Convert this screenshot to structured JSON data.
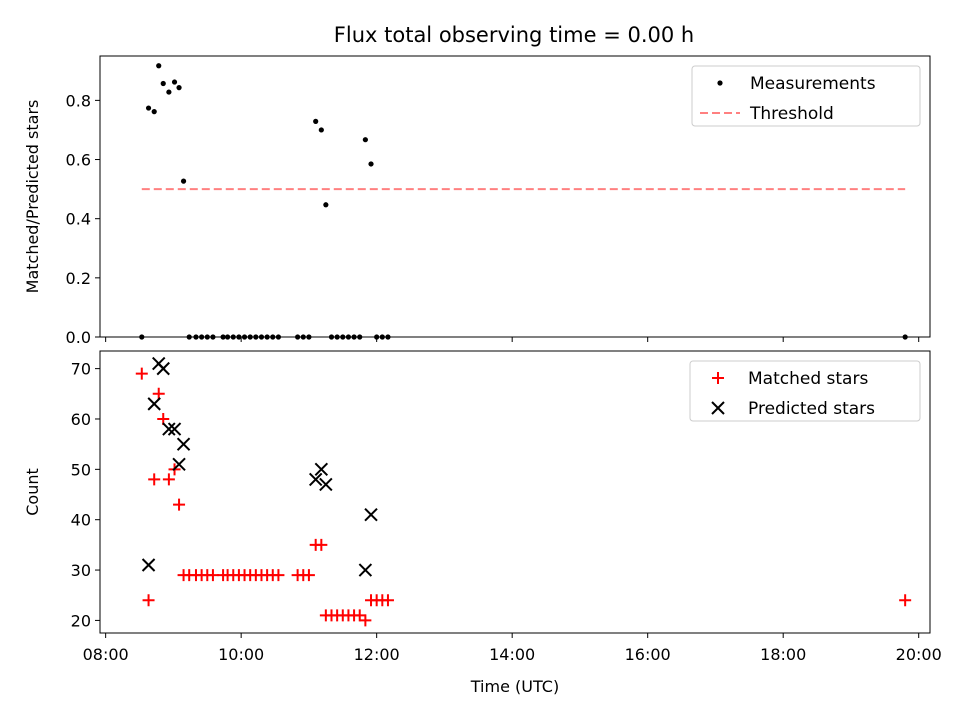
{
  "title": "Flux total observing time = 0.00 h",
  "chart_data": [
    {
      "type": "scatter",
      "ylabel": "Matched/Predicted stars",
      "xlim": [
        "07:55",
        "20:10"
      ],
      "ylim": [
        0,
        0.95
      ],
      "yticks": [
        "0.0",
        "0.2",
        "0.4",
        "0.6",
        "0.8"
      ],
      "legend": "top-right",
      "series": [
        {
          "name": "Measurements",
          "marker": "dot",
          "color": "#000000",
          "points": [
            [
              "08:32",
              0.0
            ],
            [
              "08:38",
              0.774
            ],
            [
              "08:43",
              0.762
            ],
            [
              "08:47",
              0.917
            ],
            [
              "08:51",
              0.857
            ],
            [
              "08:56",
              0.828
            ],
            [
              "09:01",
              0.862
            ],
            [
              "09:05",
              0.843
            ],
            [
              "09:09",
              0.527
            ],
            [
              "09:14",
              0.0
            ],
            [
              "09:20",
              0.0
            ],
            [
              "09:25",
              0.0
            ],
            [
              "09:30",
              0.0
            ],
            [
              "09:35",
              0.0
            ],
            [
              "09:44",
              0.0
            ],
            [
              "09:48",
              0.0
            ],
            [
              "09:53",
              0.0
            ],
            [
              "09:58",
              0.0
            ],
            [
              "10:03",
              0.0
            ],
            [
              "10:08",
              0.0
            ],
            [
              "10:13",
              0.0
            ],
            [
              "10:18",
              0.0
            ],
            [
              "10:23",
              0.0
            ],
            [
              "10:28",
              0.0
            ],
            [
              "10:33",
              0.0
            ],
            [
              "10:50",
              0.0
            ],
            [
              "10:55",
              0.0
            ],
            [
              "11:00",
              0.0
            ],
            [
              "11:06",
              0.729
            ],
            [
              "11:11",
              0.7
            ],
            [
              "11:15",
              0.447
            ],
            [
              "11:20",
              0.0
            ],
            [
              "11:25",
              0.0
            ],
            [
              "11:30",
              0.0
            ],
            [
              "11:35",
              0.0
            ],
            [
              "11:40",
              0.0
            ],
            [
              "11:45",
              0.0
            ],
            [
              "11:50",
              0.667
            ],
            [
              "11:55",
              0.585
            ],
            [
              "12:00",
              0.0
            ],
            [
              "12:05",
              0.0
            ],
            [
              "12:10",
              0.0
            ],
            [
              "19:48",
              0.0
            ]
          ]
        },
        {
          "name": "Threshold",
          "marker": "dashed-line",
          "color": "#ff8080",
          "points": [
            [
              "08:32",
              0.5
            ],
            [
              "19:48",
              0.5
            ]
          ]
        }
      ]
    },
    {
      "type": "scatter",
      "xlabel": "Time (UTC)",
      "ylabel": "Count",
      "xlim": [
        "07:55",
        "20:10"
      ],
      "ylim": [
        17.5,
        73.5
      ],
      "xticks": [
        "08:00",
        "10:00",
        "12:00",
        "14:00",
        "16:00",
        "18:00",
        "20:00"
      ],
      "yticks": [
        "20",
        "30",
        "40",
        "50",
        "60",
        "70"
      ],
      "legend": "top-right",
      "series": [
        {
          "name": "Matched stars",
          "marker": "plus",
          "color": "#ff0000",
          "points": [
            [
              "08:32",
              69
            ],
            [
              "08:38",
              24
            ],
            [
              "08:43",
              48
            ],
            [
              "08:47",
              65
            ],
            [
              "08:51",
              60
            ],
            [
              "08:56",
              48
            ],
            [
              "09:01",
              50
            ],
            [
              "09:05",
              43
            ],
            [
              "09:09",
              29
            ],
            [
              "09:14",
              29
            ],
            [
              "09:20",
              29
            ],
            [
              "09:25",
              29
            ],
            [
              "09:30",
              29
            ],
            [
              "09:35",
              29
            ],
            [
              "09:44",
              29
            ],
            [
              "09:48",
              29
            ],
            [
              "09:53",
              29
            ],
            [
              "09:58",
              29
            ],
            [
              "10:03",
              29
            ],
            [
              "10:08",
              29
            ],
            [
              "10:13",
              29
            ],
            [
              "10:18",
              29
            ],
            [
              "10:23",
              29
            ],
            [
              "10:28",
              29
            ],
            [
              "10:33",
              29
            ],
            [
              "10:50",
              29
            ],
            [
              "10:55",
              29
            ],
            [
              "11:00",
              29
            ],
            [
              "11:06",
              35
            ],
            [
              "11:11",
              35
            ],
            [
              "11:15",
              21
            ],
            [
              "11:20",
              21
            ],
            [
              "11:25",
              21
            ],
            [
              "11:30",
              21
            ],
            [
              "11:35",
              21
            ],
            [
              "11:40",
              21
            ],
            [
              "11:45",
              21
            ],
            [
              "11:50",
              20
            ],
            [
              "11:55",
              24
            ],
            [
              "12:00",
              24
            ],
            [
              "12:05",
              24
            ],
            [
              "12:10",
              24
            ],
            [
              "19:48",
              24
            ]
          ]
        },
        {
          "name": "Predicted stars",
          "marker": "x",
          "color": "#000000",
          "points": [
            [
              "08:38",
              31
            ],
            [
              "08:43",
              63
            ],
            [
              "08:47",
              71
            ],
            [
              "08:51",
              70
            ],
            [
              "08:56",
              58
            ],
            [
              "09:01",
              58
            ],
            [
              "09:05",
              51
            ],
            [
              "09:09",
              55
            ],
            [
              "11:06",
              48
            ],
            [
              "11:11",
              50
            ],
            [
              "11:15",
              47
            ],
            [
              "11:50",
              30
            ],
            [
              "11:55",
              41
            ]
          ]
        }
      ]
    }
  ]
}
